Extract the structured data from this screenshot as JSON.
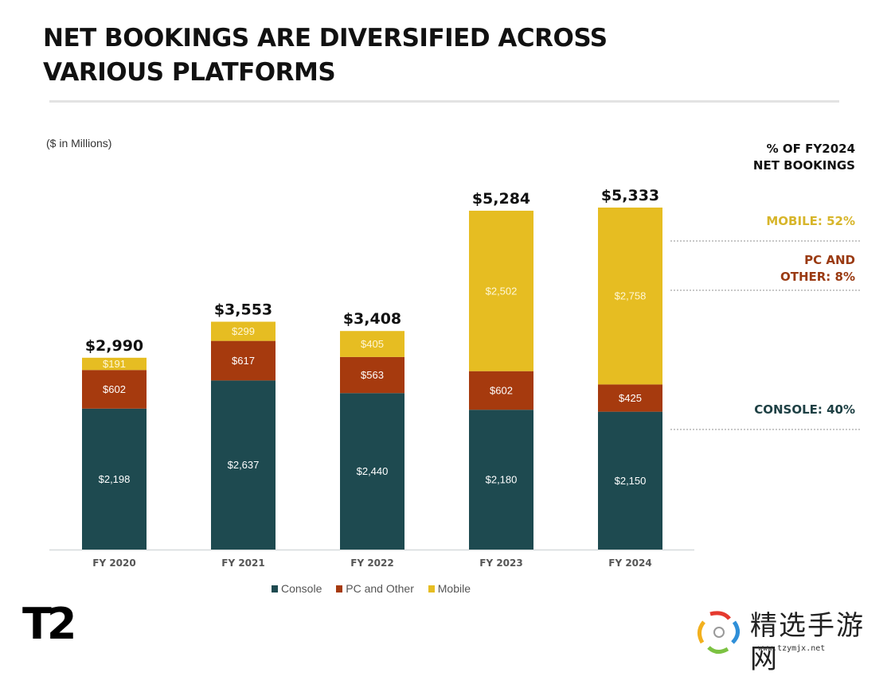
{
  "header": {
    "title_line1": "NET BOOKINGS ARE DIVERSIFIED ACROSS",
    "title_line2": "VARIOUS PLATFORMS",
    "units": "($ in Millions)"
  },
  "side_panel": {
    "heading_line1": "% OF FY2024",
    "heading_line2": "NET BOOKINGS",
    "mobile": "MOBILE: 52%",
    "pc_line1": "PC AND",
    "pc_line2": "OTHER: 8%",
    "console": "CONSOLE: 40%"
  },
  "colors": {
    "console": "#1e4a50",
    "pc": "#a63a0e",
    "mobile": "#e6bd22",
    "mobile_text": "#d7b52a",
    "pc_text": "#9a3a12",
    "console_text": "#1e4044"
  },
  "chart_data": {
    "type": "bar",
    "stacked": true,
    "title": "NET BOOKINGS ARE DIVERSIFIED ACROSS VARIOUS PLATFORMS",
    "xlabel": "",
    "ylabel": "$ in Millions",
    "ylim": [
      0,
      5333
    ],
    "grid": false,
    "legend_position": "bottom",
    "categories": [
      "FY 2020",
      "FY 2021",
      "FY 2022",
      "FY 2023",
      "FY 2024"
    ],
    "series": [
      {
        "name": "Console",
        "values": [
          2198,
          2637,
          2440,
          2180,
          2150
        ],
        "labels": [
          "$2,198",
          "$2,637",
          "$2,440",
          "$2,180",
          "$2,150"
        ]
      },
      {
        "name": "PC and Other",
        "values": [
          602,
          617,
          563,
          602,
          425
        ],
        "labels": [
          "$602",
          "$617",
          "$563",
          "$602",
          "$425"
        ]
      },
      {
        "name": "Mobile",
        "values": [
          191,
          299,
          405,
          2502,
          2758
        ],
        "labels": [
          "$191",
          "$299",
          "$405",
          "$2,502",
          "$2,758"
        ]
      }
    ],
    "totals": [
      2990,
      3553,
      3408,
      5284,
      5333
    ],
    "total_labels": [
      "$2,990",
      "$3,553",
      "$3,408",
      "$5,284",
      "$5,333"
    ],
    "annotations": [
      "% OF FY2024 NET BOOKINGS",
      "MOBILE: 52%",
      "PC AND OTHER: 8%",
      "CONSOLE: 40%"
    ]
  },
  "legend": {
    "items": [
      "Console",
      "PC and Other",
      "Mobile"
    ]
  },
  "footer": {
    "logo": "T2",
    "watermark_text": "精选手游网",
    "watermark_url": "www.tzymjx.net"
  }
}
